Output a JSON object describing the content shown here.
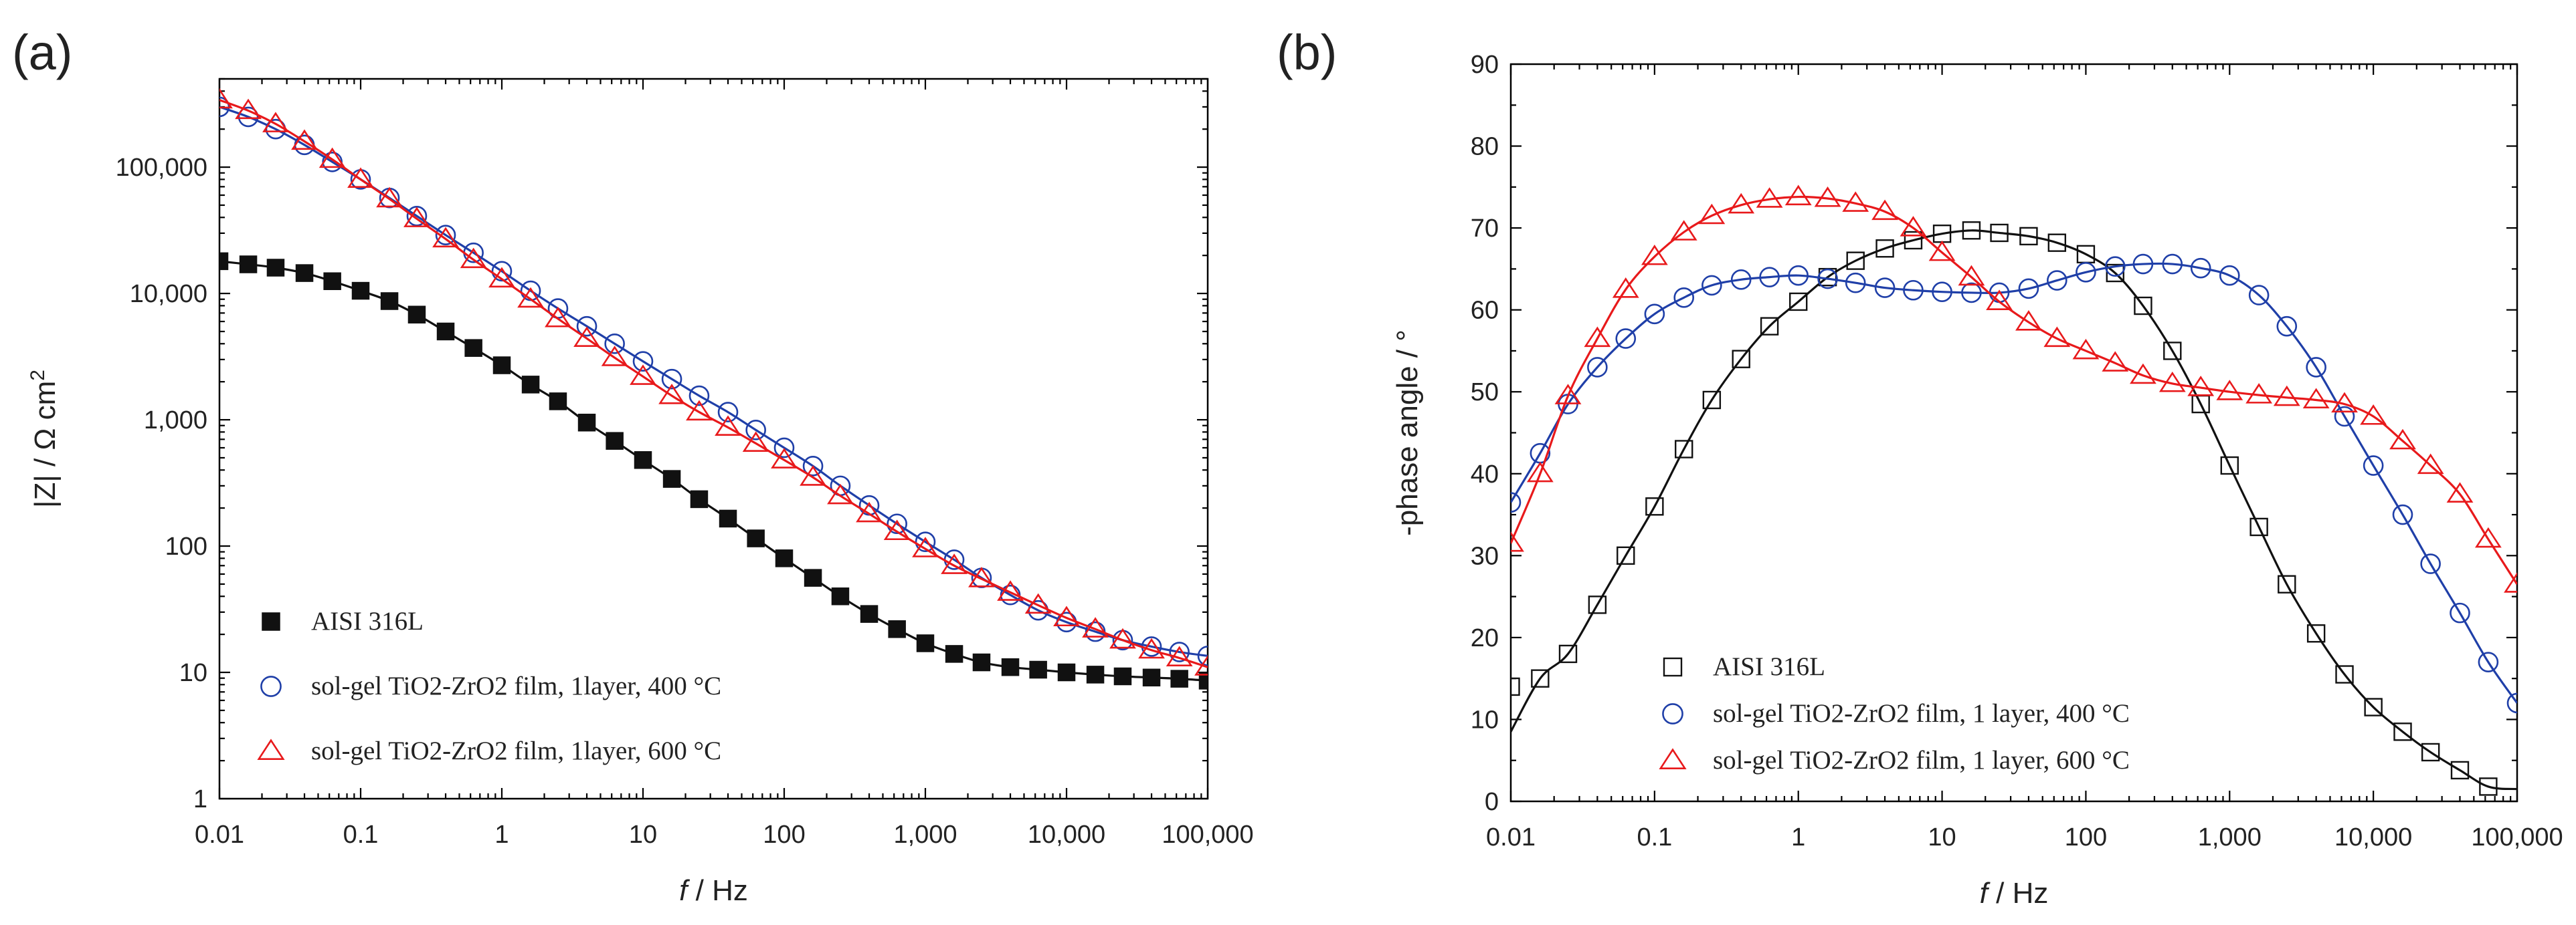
{
  "chart_data": [
    {
      "type": "scatter",
      "panel_label": "(a)",
      "xlabel_italic": "f",
      "xlabel": " / Hz",
      "ylabel": "|Z| / Ω cm",
      "ylabel_superscript": "2",
      "x_scale": "log",
      "y_scale": "log",
      "xlim": [
        0.01,
        100000
      ],
      "ylim": [
        1,
        500000
      ],
      "x_ticks": [
        0.01,
        0.1,
        1,
        10,
        100,
        1000,
        10000,
        100000
      ],
      "x_tick_labels": [
        "0.01",
        "0.1",
        "1",
        "10",
        "100",
        "1,000",
        "10,000",
        "100,000"
      ],
      "y_ticks": [
        1,
        10,
        100,
        1000,
        10000,
        100000
      ],
      "y_tick_labels": [
        "1",
        "10",
        "100",
        "1,000",
        "10,000",
        "100,000"
      ],
      "legend_position": "bottom-left",
      "series": [
        {
          "name": "AISI 316L",
          "marker": "filled-square",
          "color": "#111111",
          "x": [
            0.01,
            0.016,
            0.025,
            0.04,
            0.063,
            0.1,
            0.16,
            0.25,
            0.4,
            0.63,
            1,
            1.6,
            2.5,
            4,
            6.3,
            10,
            16,
            25,
            40,
            63,
            100,
            160,
            250,
            400,
            630,
            1000,
            1600,
            2500,
            4000,
            6300,
            10000,
            16000,
            25000,
            40000,
            63000,
            100000
          ],
          "values": [
            18000,
            17000,
            16000,
            14500,
            12500,
            10500,
            8700,
            6800,
            5000,
            3700,
            2700,
            1900,
            1400,
            950,
            680,
            480,
            340,
            235,
            165,
            115,
            80,
            56,
            40,
            29,
            22,
            17,
            14,
            12,
            11,
            10.5,
            10,
            9.6,
            9.3,
            9.1,
            8.9,
            8.6
          ]
        },
        {
          "name": "sol-gel  TiO2-ZrO2 film, 1layer, 400 °C",
          "marker": "open-circle",
          "color": "#1f3fa8",
          "x": [
            0.01,
            0.016,
            0.025,
            0.04,
            0.063,
            0.1,
            0.16,
            0.25,
            0.4,
            0.63,
            1,
            1.6,
            2.5,
            4,
            6.3,
            10,
            16,
            25,
            40,
            63,
            100,
            160,
            250,
            400,
            630,
            1000,
            1600,
            2500,
            4000,
            6300,
            10000,
            16000,
            25000,
            40000,
            63000,
            100000
          ],
          "values": [
            300000,
            250000,
            200000,
            150000,
            110000,
            80000,
            57000,
            41000,
            29000,
            21000,
            15000,
            10500,
            7600,
            5500,
            4000,
            2900,
            2100,
            1550,
            1150,
            830,
            600,
            430,
            300,
            210,
            150,
            108,
            78,
            56,
            41,
            31,
            25,
            21,
            18,
            16,
            14.5,
            13.5
          ]
        },
        {
          "name": "sol-gel  TiO2-ZrO2 film, 1layer, 600 °C",
          "marker": "open-triangle",
          "color": "#e8191b",
          "x": [
            0.01,
            0.016,
            0.025,
            0.04,
            0.063,
            0.1,
            0.16,
            0.25,
            0.4,
            0.63,
            1,
            1.6,
            2.5,
            4,
            6.3,
            10,
            16,
            25,
            40,
            63,
            100,
            160,
            250,
            400,
            630,
            1000,
            1600,
            2500,
            4000,
            6300,
            10000,
            16000,
            25000,
            40000,
            63000,
            100000
          ],
          "values": [
            340000,
            280000,
            220000,
            160000,
            115000,
            80000,
            56000,
            39000,
            27000,
            18500,
            13000,
            9000,
            6300,
            4400,
            3100,
            2200,
            1550,
            1150,
            870,
            650,
            480,
            350,
            250,
            180,
            130,
            95,
            70,
            55,
            43,
            34,
            27,
            22,
            18,
            15,
            13,
            11
          ]
        }
      ]
    },
    {
      "type": "scatter",
      "panel_label": "(b)",
      "xlabel_italic": "f",
      "xlabel": " / Hz",
      "ylabel": "-phase angle / °",
      "x_scale": "log",
      "y_scale": "linear",
      "xlim": [
        0.01,
        100000
      ],
      "ylim": [
        0,
        90
      ],
      "x_ticks": [
        0.01,
        0.1,
        1,
        10,
        100,
        1000,
        10000,
        100000
      ],
      "x_tick_labels": [
        "0.01",
        "0.1",
        "1",
        "10",
        "100",
        "1,000",
        "10,000",
        "100,000"
      ],
      "y_ticks": [
        0,
        10,
        20,
        30,
        40,
        50,
        60,
        70,
        80,
        90
      ],
      "y_tick_labels": [
        "0",
        "10",
        "20",
        "30",
        "40",
        "50",
        "60",
        "70",
        "80",
        "90"
      ],
      "legend_position": "bottom-left",
      "series": [
        {
          "name": "AISI 316L",
          "marker": "open-square",
          "color": "#111111",
          "x": [
            0.01,
            0.016,
            0.025,
            0.04,
            0.063,
            0.1,
            0.16,
            0.25,
            0.4,
            0.63,
            1,
            1.6,
            2.5,
            4,
            6.3,
            10,
            16,
            25,
            40,
            63,
            100,
            160,
            250,
            400,
            630,
            1000,
            1600,
            2500,
            4000,
            6300,
            10000,
            16000,
            25000,
            40000,
            63000
          ],
          "values": [
            14,
            15,
            18,
            24,
            30,
            36,
            43,
            49,
            54,
            58,
            61,
            64,
            66,
            67.5,
            68.5,
            69.3,
            69.7,
            69.4,
            69,
            68.2,
            66.8,
            64.5,
            60.5,
            55,
            48.5,
            41,
            33.5,
            26.5,
            20.5,
            15.5,
            11.5,
            8.5,
            6,
            3.8,
            1.8
          ]
        },
        {
          "name": "sol-gel  TiO2-ZrO2 film, 1 layer, 400 °C",
          "marker": "open-circle",
          "color": "#1f3fa8",
          "x": [
            0.01,
            0.016,
            0.025,
            0.04,
            0.063,
            0.1,
            0.16,
            0.25,
            0.4,
            0.63,
            1,
            1.6,
            2.5,
            4,
            6.3,
            10,
            16,
            25,
            40,
            63,
            100,
            160,
            250,
            400,
            630,
            1000,
            1600,
            2500,
            4000,
            6300,
            10000,
            16000,
            25000,
            40000,
            63000,
            100000
          ],
          "values": [
            36.5,
            42.5,
            48.5,
            53,
            56.5,
            59.5,
            61.5,
            63,
            63.7,
            64,
            64.2,
            63.8,
            63.3,
            62.7,
            62.4,
            62.2,
            62.1,
            62.1,
            62.6,
            63.6,
            64.6,
            65.3,
            65.6,
            65.6,
            65.1,
            64.2,
            61.8,
            58,
            53,
            47,
            41,
            35,
            29,
            23,
            17,
            12
          ]
        },
        {
          "name": "sol-gel  TiO2-ZrO2 film, 1 layer, 600 °C",
          "marker": "open-triangle",
          "color": "#e8191b",
          "x": [
            0.01,
            0.016,
            0.025,
            0.04,
            0.063,
            0.1,
            0.16,
            0.25,
            0.4,
            0.63,
            1,
            1.6,
            2.5,
            4,
            6.3,
            10,
            16,
            25,
            40,
            63,
            100,
            160,
            250,
            400,
            630,
            1000,
            1600,
            2500,
            4000,
            6300,
            10000,
            16000,
            25000,
            40000,
            63000,
            100000
          ],
          "values": [
            31.5,
            40,
            49.5,
            56.5,
            62.5,
            66.5,
            69.5,
            71.5,
            72.8,
            73.5,
            73.8,
            73.6,
            73,
            72,
            70,
            67,
            64,
            61,
            58.5,
            56.5,
            55,
            53.5,
            52,
            51,
            50.5,
            50,
            49.6,
            49.3,
            49,
            48.5,
            47,
            44,
            41,
            37.5,
            32,
            26.5
          ]
        }
      ]
    }
  ]
}
